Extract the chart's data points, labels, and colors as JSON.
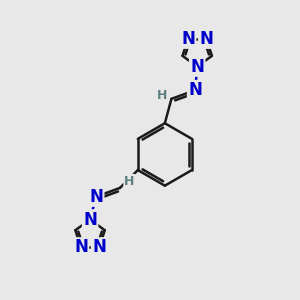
{
  "background_color": "#e8e8e8",
  "bond_color": "#1a1a1a",
  "N_color": "#0000cc",
  "H_color": "#5f8080",
  "bond_width": 1.8,
  "font_size_atom": 12,
  "font_size_H": 9,
  "fig_width": 3.0,
  "fig_height": 3.0,
  "dpi": 100,
  "xlim": [
    0,
    10
  ],
  "ylim": [
    0,
    10
  ]
}
